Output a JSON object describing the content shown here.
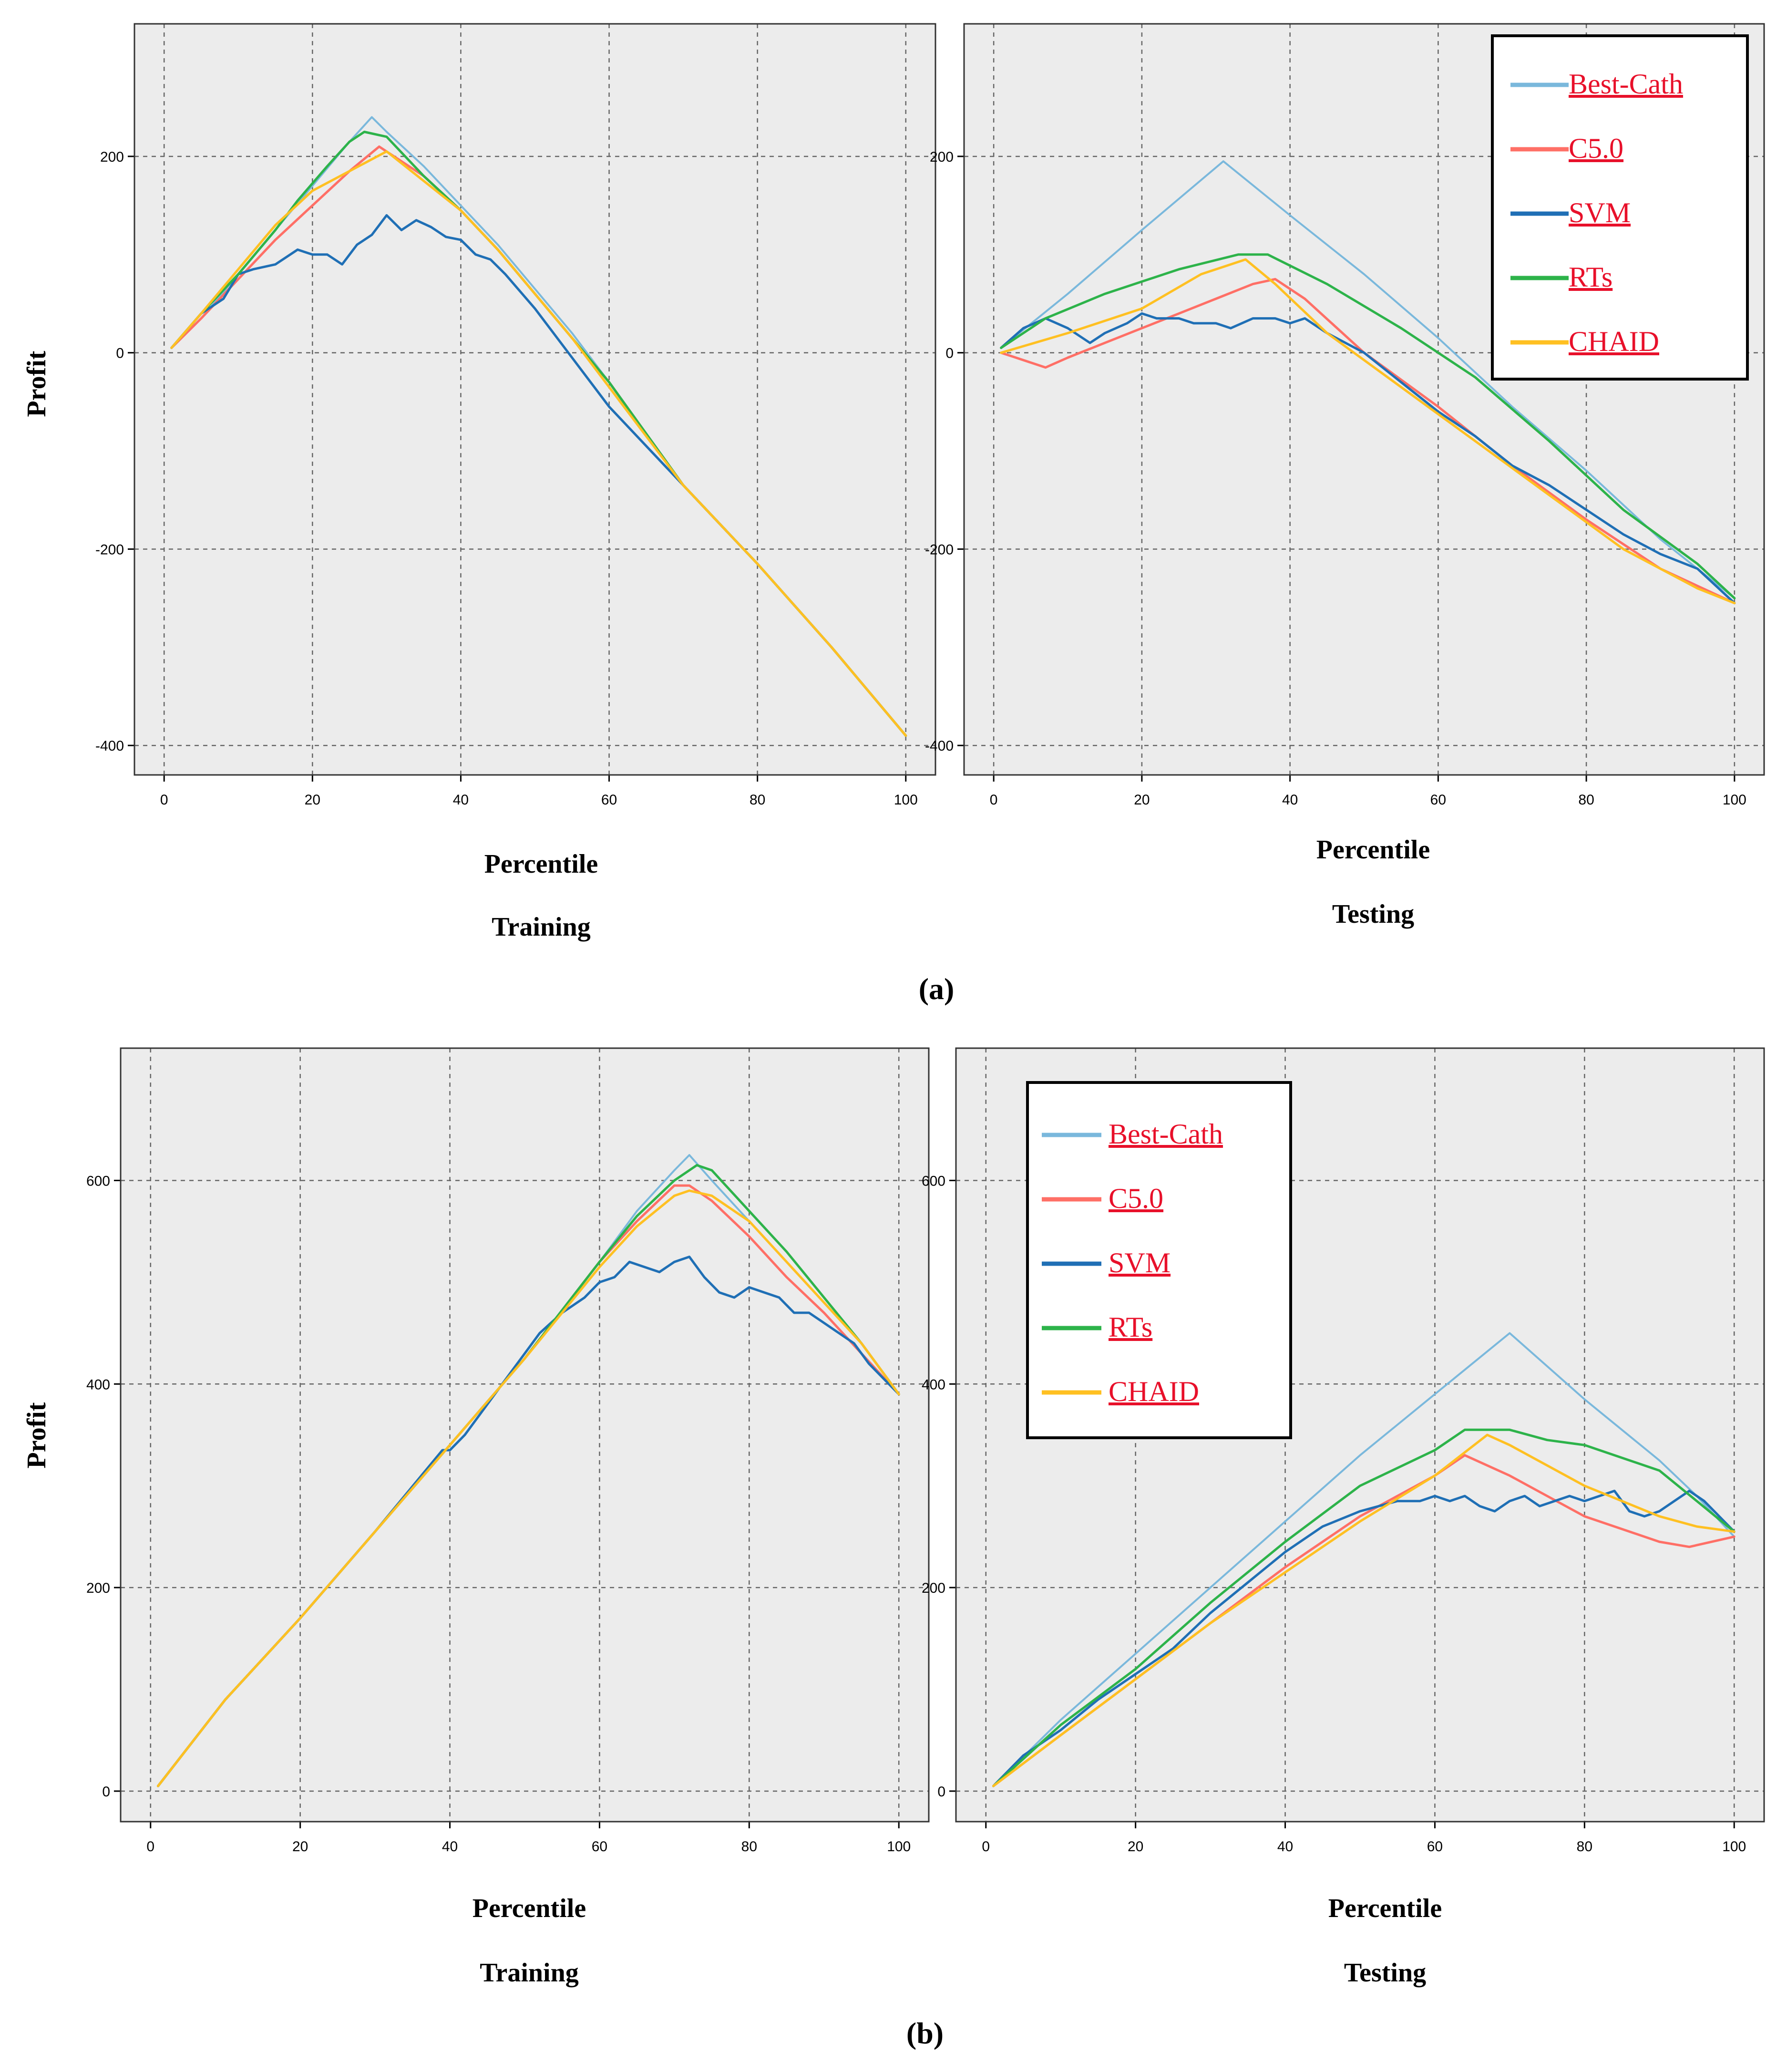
{
  "figure": {
    "panel_a_label": "(a)",
    "panel_b_label": "(b)"
  },
  "colors": {
    "Best-Cath": "#7ab8dc",
    "C5.0": "#ff6f66",
    "SVM": "#1f6fb5",
    "RTs": "#2db34a",
    "CHAID": "#ffc022",
    "plot_bg": "#ececec",
    "legend_text": "#e8102a"
  },
  "chart_data": [
    {
      "id": "a-training",
      "type": "line",
      "xlabel": "Percentile",
      "subtitle": "Training",
      "ylabel": "Profit",
      "xlim": [
        -4,
        104
      ],
      "ylim": [
        -430,
        335
      ],
      "xticks": [
        0,
        20,
        40,
        60,
        80,
        100
      ],
      "yticks": [
        -400,
        -200,
        0,
        200
      ],
      "grid": true,
      "series": [
        {
          "name": "Best-Cath",
          "x": [
            1,
            5,
            10,
            15,
            20,
            25,
            28,
            30,
            35,
            40,
            45,
            50,
            55,
            60,
            70,
            80,
            90,
            100
          ],
          "y": [
            5,
            35,
            80,
            125,
            170,
            215,
            240,
            225,
            190,
            150,
            110,
            65,
            20,
            -30,
            -135,
            -215,
            -300,
            -390
          ]
        },
        {
          "name": "C5.0",
          "x": [
            1,
            5,
            10,
            15,
            20,
            25,
            29,
            35,
            40,
            45,
            50,
            55,
            60,
            70,
            80,
            90,
            100
          ],
          "y": [
            5,
            35,
            75,
            115,
            150,
            185,
            210,
            180,
            145,
            105,
            60,
            15,
            -30,
            -135,
            -215,
            -300,
            -390
          ]
        },
        {
          "name": "SVM",
          "x": [
            1,
            5,
            8,
            10,
            12,
            15,
            18,
            20,
            22,
            24,
            26,
            28,
            30,
            32,
            34,
            36,
            38,
            40,
            42,
            44,
            46,
            50,
            55,
            60,
            70,
            80,
            90,
            100
          ],
          "y": [
            5,
            40,
            55,
            80,
            85,
            90,
            105,
            100,
            100,
            90,
            110,
            120,
            140,
            125,
            135,
            128,
            118,
            115,
            100,
            95,
            80,
            45,
            -5,
            -55,
            -135,
            -215,
            -300,
            -390
          ]
        },
        {
          "name": "RTs",
          "x": [
            1,
            5,
            10,
            15,
            18,
            22,
            25,
            27,
            30,
            35,
            40,
            45,
            50,
            55,
            60,
            70,
            80,
            90,
            100
          ],
          "y": [
            5,
            40,
            80,
            125,
            155,
            190,
            215,
            225,
            220,
            180,
            145,
            105,
            60,
            15,
            -30,
            -135,
            -215,
            -300,
            -390
          ]
        },
        {
          "name": "CHAID",
          "x": [
            1,
            5,
            10,
            15,
            20,
            25,
            30,
            35,
            40,
            45,
            50,
            55,
            60,
            70,
            80,
            90,
            100
          ],
          "y": [
            5,
            40,
            85,
            130,
            165,
            185,
            205,
            175,
            145,
            105,
            60,
            15,
            -35,
            -135,
            -215,
            -300,
            -390
          ]
        }
      ]
    },
    {
      "id": "a-testing",
      "type": "line",
      "xlabel": "Percentile",
      "subtitle": "Testing",
      "xlim": [
        -4,
        104
      ],
      "ylim": [
        -430,
        335
      ],
      "xticks": [
        0,
        20,
        40,
        60,
        80,
        100
      ],
      "yticks": [
        -400,
        -200,
        0,
        200
      ],
      "grid": true,
      "legend": {
        "placement": "top-right",
        "entries": [
          "Best-Cath",
          "C5.0",
          "SVM",
          "RTs",
          "CHAID"
        ]
      },
      "series": [
        {
          "name": "Best-Cath",
          "x": [
            1,
            10,
            20,
            31,
            40,
            50,
            60,
            70,
            80,
            90,
            100
          ],
          "y": [
            5,
            60,
            125,
            195,
            140,
            80,
            15,
            -55,
            -120,
            -190,
            -250
          ]
        },
        {
          "name": "C5.0",
          "x": [
            1,
            3,
            7,
            10,
            15,
            20,
            25,
            30,
            35,
            38,
            42,
            50,
            60,
            70,
            80,
            90,
            100
          ],
          "y": [
            0,
            -5,
            -15,
            -5,
            10,
            25,
            40,
            55,
            70,
            75,
            55,
            0,
            -55,
            -115,
            -170,
            -220,
            -255
          ]
        },
        {
          "name": "SVM",
          "x": [
            1,
            4,
            7,
            10,
            13,
            15,
            18,
            20,
            22,
            25,
            27,
            30,
            32,
            35,
            38,
            40,
            42,
            45,
            50,
            55,
            60,
            65,
            70,
            75,
            80,
            85,
            90,
            95,
            100
          ],
          "y": [
            5,
            25,
            35,
            25,
            10,
            20,
            30,
            40,
            35,
            35,
            30,
            30,
            25,
            35,
            35,
            30,
            35,
            20,
            0,
            -30,
            -60,
            -85,
            -115,
            -135,
            -160,
            -185,
            -205,
            -220,
            -255
          ]
        },
        {
          "name": "RTs",
          "x": [
            1,
            7,
            15,
            25,
            33,
            37,
            45,
            55,
            65,
            75,
            85,
            95,
            100
          ],
          "y": [
            5,
            35,
            60,
            85,
            100,
            100,
            70,
            25,
            -25,
            -90,
            -160,
            -215,
            -250
          ]
        },
        {
          "name": "CHAID",
          "x": [
            1,
            10,
            20,
            28,
            34,
            38,
            45,
            55,
            65,
            75,
            85,
            95,
            100
          ],
          "y": [
            0,
            20,
            45,
            80,
            95,
            70,
            20,
            -35,
            -90,
            -145,
            -200,
            -240,
            -255
          ]
        }
      ]
    },
    {
      "id": "b-training",
      "type": "line",
      "xlabel": "Percentile",
      "subtitle": "Training",
      "ylabel": "Profit",
      "xlim": [
        -4,
        104
      ],
      "ylim": [
        -30,
        730
      ],
      "xticks": [
        0,
        20,
        40,
        60,
        80,
        100
      ],
      "yticks": [
        0,
        200,
        400,
        600
      ],
      "grid": true,
      "series": [
        {
          "name": "Best-Cath",
          "x": [
            1,
            10,
            20,
            30,
            40,
            50,
            60,
            65,
            70,
            72,
            75,
            80,
            85,
            90,
            95,
            100
          ],
          "y": [
            5,
            90,
            170,
            255,
            340,
            425,
            520,
            570,
            610,
            625,
            600,
            560,
            520,
            480,
            440,
            390
          ]
        },
        {
          "name": "C5.0",
          "x": [
            1,
            10,
            20,
            30,
            40,
            50,
            60,
            65,
            70,
            72,
            75,
            80,
            85,
            90,
            95,
            100
          ],
          "y": [
            5,
            90,
            170,
            255,
            340,
            425,
            520,
            560,
            595,
            595,
            580,
            545,
            505,
            470,
            430,
            390
          ]
        },
        {
          "name": "SVM",
          "x": [
            1,
            10,
            20,
            30,
            39,
            40,
            42,
            45,
            48,
            50,
            52,
            55,
            58,
            60,
            62,
            64,
            66,
            68,
            70,
            72,
            74,
            76,
            78,
            80,
            82,
            84,
            86,
            88,
            90,
            92,
            94,
            96,
            98,
            100
          ],
          "y": [
            5,
            90,
            170,
            255,
            335,
            335,
            350,
            380,
            410,
            430,
            450,
            470,
            485,
            500,
            505,
            520,
            515,
            510,
            520,
            525,
            505,
            490,
            485,
            495,
            490,
            485,
            470,
            470,
            460,
            450,
            440,
            420,
            405,
            390
          ]
        },
        {
          "name": "RTs",
          "x": [
            1,
            10,
            20,
            30,
            40,
            50,
            60,
            65,
            70,
            73,
            75,
            80,
            85,
            90,
            95,
            100
          ],
          "y": [
            5,
            90,
            170,
            255,
            340,
            425,
            520,
            565,
            600,
            615,
            610,
            570,
            530,
            485,
            440,
            390
          ]
        },
        {
          "name": "CHAID",
          "x": [
            1,
            10,
            20,
            30,
            40,
            50,
            60,
            65,
            70,
            72,
            75,
            80,
            85,
            90,
            95,
            100
          ],
          "y": [
            5,
            90,
            170,
            255,
            340,
            425,
            515,
            555,
            585,
            590,
            585,
            560,
            520,
            480,
            440,
            390
          ]
        }
      ]
    },
    {
      "id": "b-testing",
      "type": "line",
      "xlabel": "Percentile",
      "subtitle": "Testing",
      "xlim": [
        -4,
        104
      ],
      "ylim": [
        -30,
        730
      ],
      "xticks": [
        0,
        20,
        40,
        60,
        80,
        100
      ],
      "yticks": [
        0,
        200,
        400,
        600
      ],
      "grid": true,
      "legend": {
        "placement": "top-left",
        "entries": [
          "Best-Cath",
          "C5.0",
          "SVM",
          "RTs",
          "CHAID"
        ]
      },
      "series": [
        {
          "name": "Best-Cath",
          "x": [
            1,
            10,
            20,
            30,
            40,
            50,
            60,
            70,
            80,
            90,
            95,
            100
          ],
          "y": [
            5,
            70,
            135,
            200,
            265,
            330,
            390,
            450,
            385,
            325,
            290,
            250
          ]
        },
        {
          "name": "C5.0",
          "x": [
            1,
            10,
            20,
            30,
            40,
            50,
            60,
            64,
            70,
            80,
            90,
            94,
            100
          ],
          "y": [
            5,
            55,
            110,
            165,
            220,
            270,
            310,
            330,
            310,
            270,
            245,
            240,
            250
          ]
        },
        {
          "name": "SVM",
          "x": [
            1,
            5,
            10,
            15,
            20,
            25,
            30,
            35,
            40,
            45,
            50,
            55,
            58,
            60,
            62,
            64,
            66,
            68,
            70,
            72,
            74,
            76,
            78,
            80,
            82,
            84,
            86,
            88,
            90,
            92,
            94,
            96,
            98,
            100
          ],
          "y": [
            5,
            35,
            60,
            90,
            115,
            140,
            175,
            205,
            235,
            260,
            275,
            285,
            285,
            290,
            285,
            290,
            280,
            275,
            285,
            290,
            280,
            285,
            290,
            285,
            290,
            295,
            275,
            270,
            275,
            285,
            295,
            285,
            270,
            255
          ]
        },
        {
          "name": "RTs",
          "x": [
            1,
            10,
            20,
            30,
            40,
            50,
            60,
            64,
            70,
            75,
            80,
            90,
            95,
            100
          ],
          "y": [
            5,
            65,
            120,
            185,
            245,
            300,
            335,
            355,
            355,
            345,
            340,
            315,
            285,
            255
          ]
        },
        {
          "name": "CHAID",
          "x": [
            1,
            10,
            20,
            30,
            40,
            50,
            60,
            67,
            70,
            80,
            90,
            95,
            100
          ],
          "y": [
            5,
            55,
            110,
            165,
            215,
            265,
            310,
            350,
            340,
            300,
            270,
            260,
            255
          ]
        }
      ]
    }
  ]
}
